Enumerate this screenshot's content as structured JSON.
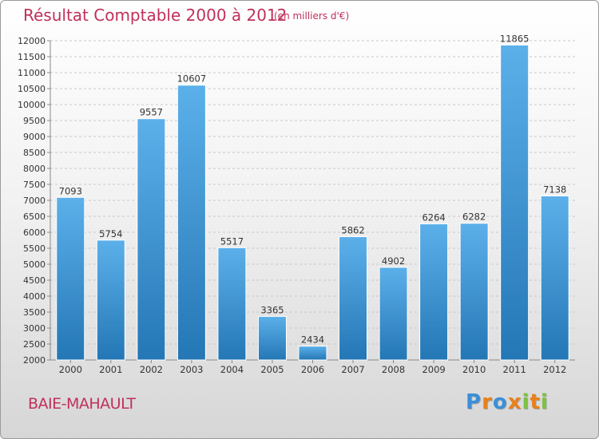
{
  "header": {
    "title": "Résultat Comptable 2000 à 2012",
    "unit": "(en milliers d'€)"
  },
  "footer": {
    "city": "BAIE-MAHAULT",
    "logo": "Proxiti"
  },
  "colors": {
    "accent": "#c0305a",
    "bar_top": "#5cb0ea",
    "bar_bottom": "#2477b5",
    "logo_letters": [
      "#3a8fd8",
      "#e8811a",
      "#3a8fd8",
      "#e8811a",
      "#7cc242",
      "#e8811a",
      "#7cc242"
    ]
  },
  "chart_data": {
    "type": "bar",
    "title": "Résultat Comptable 2000 à 2012",
    "ylabel": "(en milliers d'€)",
    "xlabel": "",
    "categories": [
      "2000",
      "2001",
      "2002",
      "2003",
      "2004",
      "2005",
      "2006",
      "2007",
      "2008",
      "2009",
      "2010",
      "2011",
      "2012"
    ],
    "values": [
      7093,
      5754,
      9557,
      10607,
      5517,
      3365,
      2434,
      5862,
      4902,
      6264,
      6282,
      11865,
      7138
    ],
    "ylim": [
      2000,
      12000
    ],
    "yticks": [
      2000,
      2500,
      3000,
      3500,
      4000,
      4500,
      5000,
      5500,
      6000,
      6500,
      7000,
      7500,
      8000,
      8500,
      9000,
      9500,
      10000,
      10500,
      11000,
      11500,
      12000
    ],
    "grid": "horizontal dashed",
    "legend": "none"
  }
}
